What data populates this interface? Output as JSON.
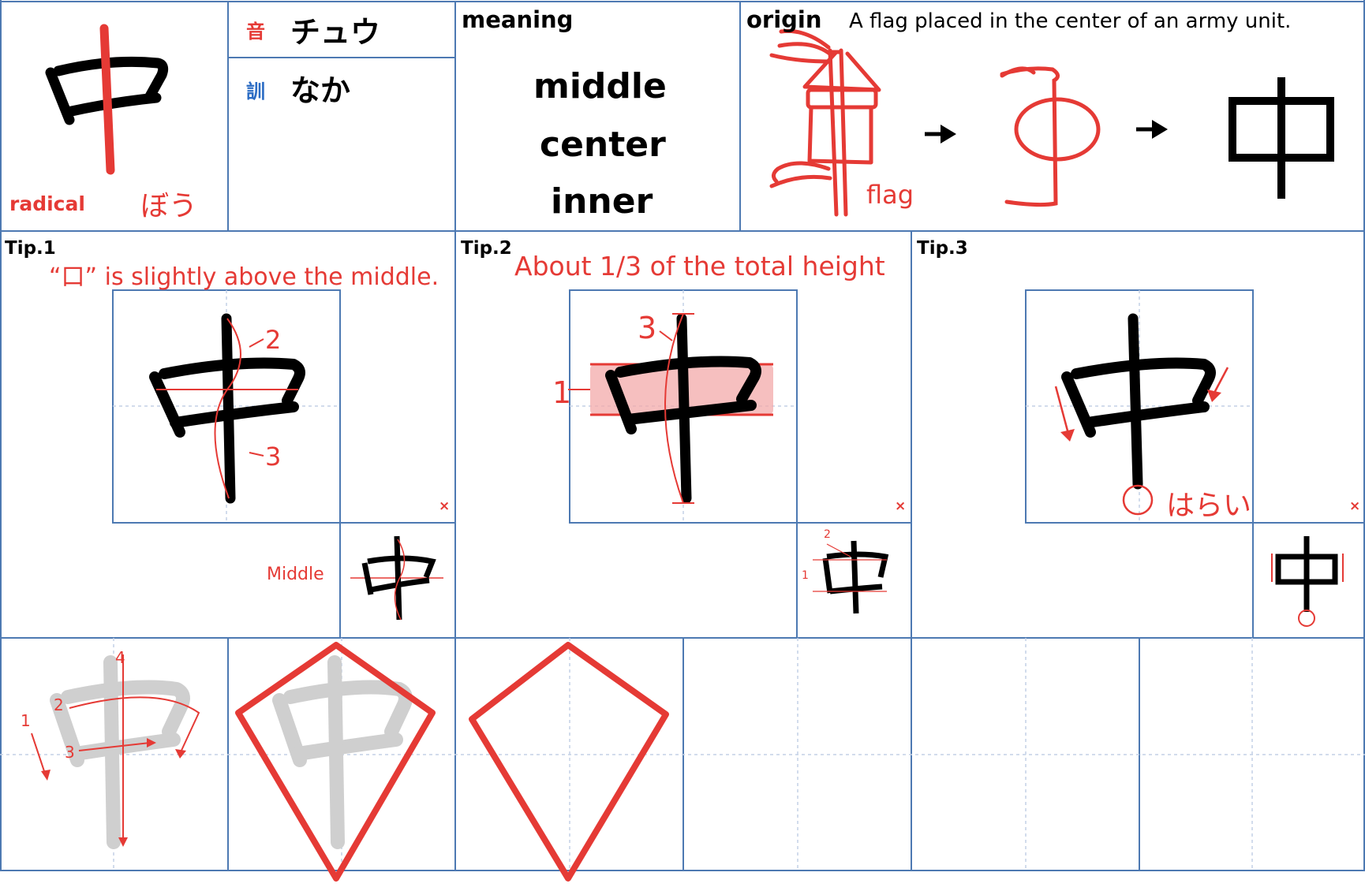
{
  "kanji": "中",
  "header": {
    "radical_label": "radical",
    "radical_name": "ぼう",
    "on_icon": "音",
    "on_reading": "チュウ",
    "kun_icon": "訓",
    "kun_reading": "なか",
    "meaning_label": "meaning",
    "meanings": [
      "middle",
      "center",
      "inner"
    ],
    "origin_label": "origin",
    "origin_text": "A flag placed in the center of an army unit.",
    "origin_flag_label": "flag"
  },
  "tips": [
    {
      "label": "Tip.1",
      "text": "“口” is slightly above the middle.",
      "stroke_numbers": [
        "2",
        "3"
      ],
      "small_label": "Middle",
      "close_mark": "×"
    },
    {
      "label": "Tip.2",
      "text": "About 1/3 of the total height",
      "stroke_numbers": [
        "1",
        "3"
      ],
      "small_numbers": [
        "2",
        "1"
      ],
      "close_mark": "×"
    },
    {
      "label": "Tip.3",
      "text": "はらい",
      "close_mark": "×"
    }
  ],
  "practice": {
    "stroke_order_numbers": [
      "1",
      "2",
      "3",
      "4"
    ]
  },
  "colors": {
    "accent_red": "#e53a35",
    "grid_blue": "#4d79b2",
    "guide_light_blue": "#c3d1e6",
    "tracing_gray": "#cfcfcf",
    "kun_blue": "#2b6cc4"
  },
  "icons": [
    "arrow-right-icon",
    "close-icon",
    "flag-pictograph-icon"
  ]
}
